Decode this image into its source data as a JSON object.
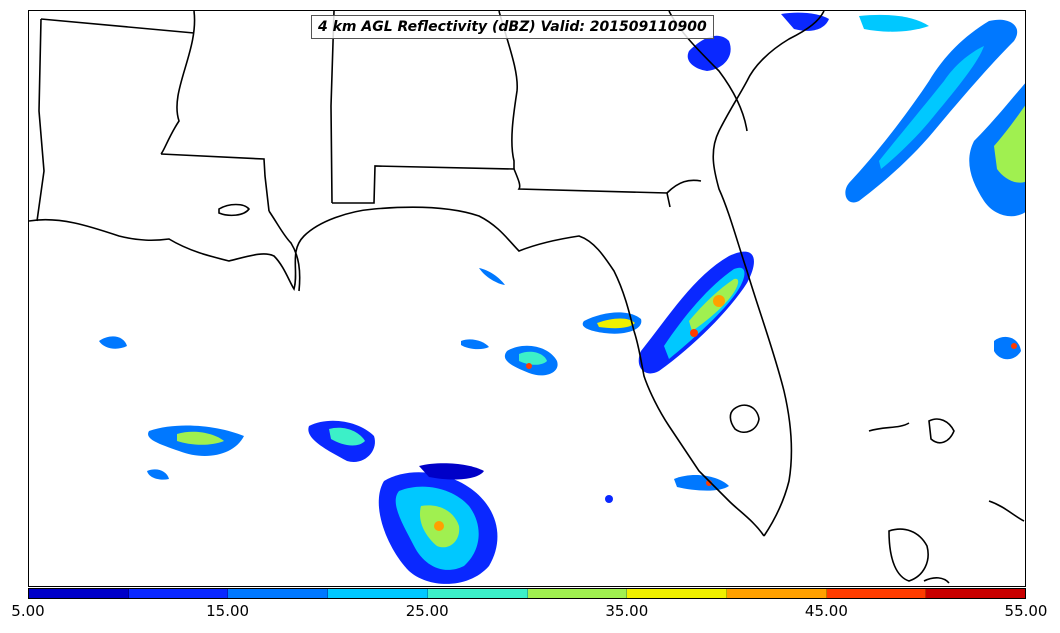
{
  "title": "4 km AGL Reflectivity (dBZ) Valid: 201509110900",
  "colorbar": {
    "colors": [
      "#0000c8",
      "#0a28ff",
      "#0078ff",
      "#00c8ff",
      "#3cf0c8",
      "#a0f050",
      "#f0f000",
      "#ffa000",
      "#ff3c00",
      "#c80000"
    ],
    "tick_labels": [
      "5.00",
      "15.00",
      "25.00",
      "35.00",
      "45.00",
      "55.00"
    ],
    "range": [
      5,
      55
    ]
  },
  "map": {
    "region": "Southeastern United States, Gulf of Mexico and western Atlantic",
    "field": "reflectivity (dBZ)",
    "coastline_color": "#000000",
    "state_border_color": "#000000"
  }
}
